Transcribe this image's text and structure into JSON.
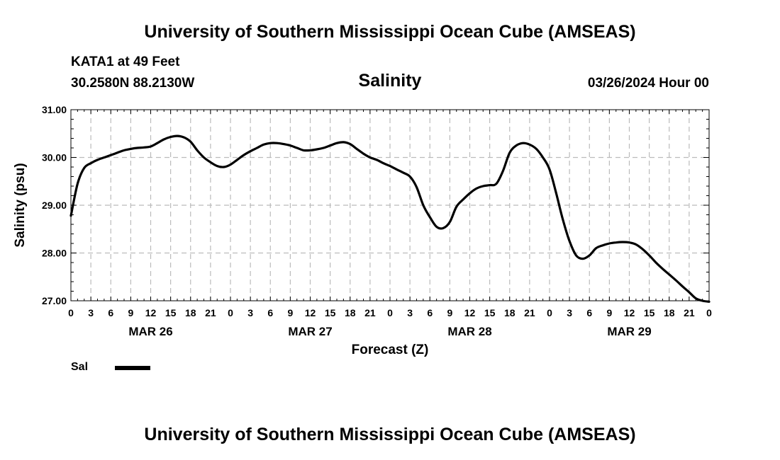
{
  "header": {
    "title_top": "University of Southern Mississippi Ocean Cube (AMSEAS)",
    "station": "KATA1 at 49 Feet",
    "coords": "30.2580N  88.2130W",
    "variable": "Salinity",
    "date": "03/26/2024 Hour 00"
  },
  "footer": {
    "title_bottom": "University of Southern Mississippi Ocean Cube (AMSEAS)"
  },
  "legend": {
    "label": "Sal",
    "color": "#000000"
  },
  "colors": {
    "line": "#000000",
    "grid": "#bbbbbb",
    "axis": "#000000"
  },
  "chart_data": {
    "type": "line",
    "title": "Salinity",
    "xlabel": "Forecast (Z)",
    "ylabel": "Salinity (psu)",
    "xlim": [
      0,
      96
    ],
    "ylim": [
      27.0,
      31.0
    ],
    "yticks": [
      "27.00",
      "28.00",
      "29.00",
      "30.00",
      "31.00"
    ],
    "yticks_values": [
      27,
      28,
      29,
      30,
      31
    ],
    "xticks_hours": [
      0,
      3,
      6,
      9,
      12,
      15,
      18,
      21,
      24,
      27,
      30,
      33,
      36,
      39,
      42,
      45,
      48,
      51,
      54,
      57,
      60,
      63,
      66,
      69,
      72,
      75,
      78,
      81,
      84,
      87,
      90,
      93,
      96
    ],
    "xtick_labels": [
      "0",
      "3",
      "6",
      "9",
      "12",
      "15",
      "18",
      "21",
      "0",
      "3",
      "6",
      "9",
      "12",
      "15",
      "18",
      "21",
      "0",
      "3",
      "6",
      "9",
      "12",
      "15",
      "18",
      "21",
      "0",
      "3",
      "6",
      "9",
      "12",
      "15",
      "18",
      "21",
      "0"
    ],
    "day_labels": [
      {
        "label": "MAR 26",
        "hour": 12
      },
      {
        "label": "MAR 27",
        "hour": 36
      },
      {
        "label": "MAR 28",
        "hour": 60
      },
      {
        "label": "MAR 29",
        "hour": 84
      }
    ],
    "grid": true,
    "series": [
      {
        "name": "Sal",
        "x": [
          0,
          1,
          2,
          3,
          4,
          5,
          6,
          7,
          8,
          9,
          10,
          11,
          12,
          13,
          14,
          15,
          16,
          17,
          18,
          19,
          20,
          21,
          22,
          23,
          24,
          25,
          26,
          27,
          28,
          29,
          30,
          31,
          32,
          33,
          34,
          35,
          36,
          37,
          38,
          39,
          40,
          41,
          42,
          43,
          44,
          45,
          46,
          47,
          48,
          49,
          50,
          51,
          52,
          53,
          54,
          55,
          56,
          57,
          58,
          59,
          60,
          61,
          62,
          63,
          64,
          65,
          66,
          67,
          68,
          69,
          70,
          71,
          72,
          73,
          74,
          75,
          76,
          77,
          78,
          79,
          80,
          81,
          82,
          83,
          84,
          85,
          86,
          87,
          88,
          89,
          90,
          91,
          92,
          93,
          94,
          95,
          96
        ],
        "values": [
          28.78,
          29.45,
          29.78,
          29.88,
          29.95,
          30.0,
          30.05,
          30.1,
          30.15,
          30.18,
          30.2,
          30.21,
          30.23,
          30.3,
          30.38,
          30.43,
          30.45,
          30.42,
          30.33,
          30.15,
          30.0,
          29.9,
          29.82,
          29.8,
          29.85,
          29.95,
          30.05,
          30.13,
          30.2,
          30.27,
          30.3,
          30.3,
          30.28,
          30.25,
          30.2,
          30.15,
          30.15,
          30.17,
          30.2,
          30.25,
          30.3,
          30.32,
          30.28,
          30.18,
          30.08,
          30.0,
          29.95,
          29.88,
          29.82,
          29.75,
          29.68,
          29.6,
          29.38,
          29.0,
          28.75,
          28.55,
          28.52,
          28.65,
          28.97,
          29.12,
          29.25,
          29.35,
          29.4,
          29.42,
          29.45,
          29.72,
          30.1,
          30.25,
          30.3,
          30.27,
          30.18,
          30.0,
          29.75,
          29.25,
          28.7,
          28.25,
          27.95,
          27.88,
          27.95,
          28.1,
          28.16,
          28.2,
          28.22,
          28.23,
          28.22,
          28.18,
          28.08,
          27.95,
          27.8,
          27.67,
          27.55,
          27.43,
          27.3,
          27.18,
          27.05,
          27.0,
          26.98
        ]
      }
    ]
  }
}
